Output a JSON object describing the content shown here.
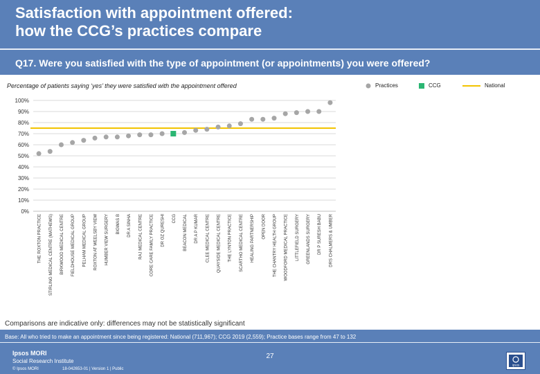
{
  "slide": {
    "title_line1": "Satisfaction with appointment offered:",
    "title_line2": "how the CCG’s practices compare",
    "question": "Q17. Were you satisfied with the type of appointment (or appointments) you were offered?",
    "subtitle": "Percentage of patients saying ‘yes’ they were satisfied with the appointment offered",
    "comparisons_note": "Comparisons are indicative only: differences may not be statistically significant",
    "base_note": "Base: All who tried to make an appointment since being registered: National (711,967); CCG 2019 (2,559); Practice bases range from 47 to 132",
    "brand_line1": "Ipsos MORI",
    "brand_line2": "Social Research Institute",
    "copyright": "© Ipsos MORI",
    "reference": "18-042653-01 | Version 1 | Public",
    "page_number": "27",
    "logo_text": "ipsos"
  },
  "legend": {
    "practices": "Practices",
    "ccg": "CCG",
    "national": "National"
  },
  "colors": {
    "header": "#5a80b8",
    "practice_marker": "#a6a6a6",
    "ccg_marker": "#2bb673",
    "national_line": "#f2c300",
    "gridline": "#d9d9d9"
  },
  "chart_data": {
    "type": "scatter",
    "y_axis": {
      "min": 0,
      "max": 100,
      "step": 10,
      "unit": "%"
    },
    "y_ticks": [
      "0%",
      "10%",
      "20%",
      "30%",
      "40%",
      "50%",
      "60%",
      "70%",
      "80%",
      "90%",
      "100%"
    ],
    "grid": true,
    "national_value": 75,
    "categories": [
      "THE ROXTON PRACTICE",
      "STIRLING MEDICAL CENTRE (MATHEWS)",
      "BIRKWOOD MEDICAL CENTRE",
      "FIELDHOUSE MEDICAL GROUP",
      "PELHAM MEDICAL GROUP",
      "ROXTON AT WEELSBY VIEW",
      "HUMBER VIEW SURGERY",
      "BIGWAS B",
      "DR A SINHA",
      "RAJ MEDICAL CENTRE",
      "CORE CARE FAMILY PRACTICE",
      "DR OZ QURESHI",
      "CCG",
      "BEACON MEDICAL",
      "DR A P KUMAR",
      "CLEE MEDICAL CENTRE",
      "QUAYSIDE MEDICAL CENTRE",
      "THE LYNTON PRACTICE",
      "SCARTHO MEDICAL CENTRE",
      "HEALING PARTNERSHIP",
      "OPEN DOOR",
      "THE CHANTRY HEALTH GROUP",
      "WOODFORD MEDICAL PRACTICE",
      "LITTLEFIELD SURGERY",
      "GREENLANDS SURGERY",
      "DR P SURESH BABU",
      "DRS CHALMERS & UMBER"
    ],
    "values": [
      52,
      54,
      60,
      62,
      64,
      66,
      67,
      67,
      68,
      69,
      69,
      70,
      70,
      71,
      73,
      74,
      76,
      77,
      79,
      83,
      83,
      84,
      88,
      89,
      90,
      90,
      98
    ],
    "ccg_index": 12
  }
}
